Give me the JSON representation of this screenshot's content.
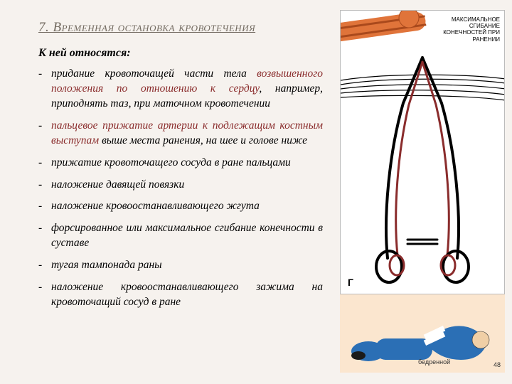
{
  "title": "7.  Временная остановка кровотечения",
  "intro": "К ней относятся:",
  "items": [
    {
      "html": "придание кровоточащей части тела <span class='emph'>возвышенного положения по отношению к сердцу</span>, например, приподнять таз, при маточном кровотечении"
    },
    {
      "html": "<span class='emph'>пальцевое прижатие артерии к подлежащим костным выступам</span> выше места ранения, на  шее и голове ниже"
    },
    {
      "html": "прижатие кровоточащего сосуда в ране пальцами"
    },
    {
      "html": "наложение давящей повязки"
    },
    {
      "html": "наложение кровоостанавливающего жгута"
    },
    {
      "html": "форсированное или максимальное сгибание конечности в суставе"
    },
    {
      "html": "тугая тампонада раны"
    },
    {
      "html": "наложение кровоостанавливающего зажима на кровоточащий сосуд в ране"
    }
  ],
  "illus_label": "МАКСИМАЛЬНОЕ СГИБАНИЕ КОНЕЧНОСТЕЙ ПРИ РАНЕНИИ",
  "corner_letter": "Г",
  "pagenum": "48",
  "bottom_label": "бедренной",
  "colors": {
    "bg": "#f6f2ee",
    "title": "#726a60",
    "emph": "#8a2c2c",
    "illus_band": "#fbe6cf",
    "tourniquet": "#e0743a",
    "figure_blue": "#2b6fb5"
  },
  "forceps": {
    "stroke": "#000000",
    "inner_stroke": "#8a2c2c",
    "width": 3
  }
}
